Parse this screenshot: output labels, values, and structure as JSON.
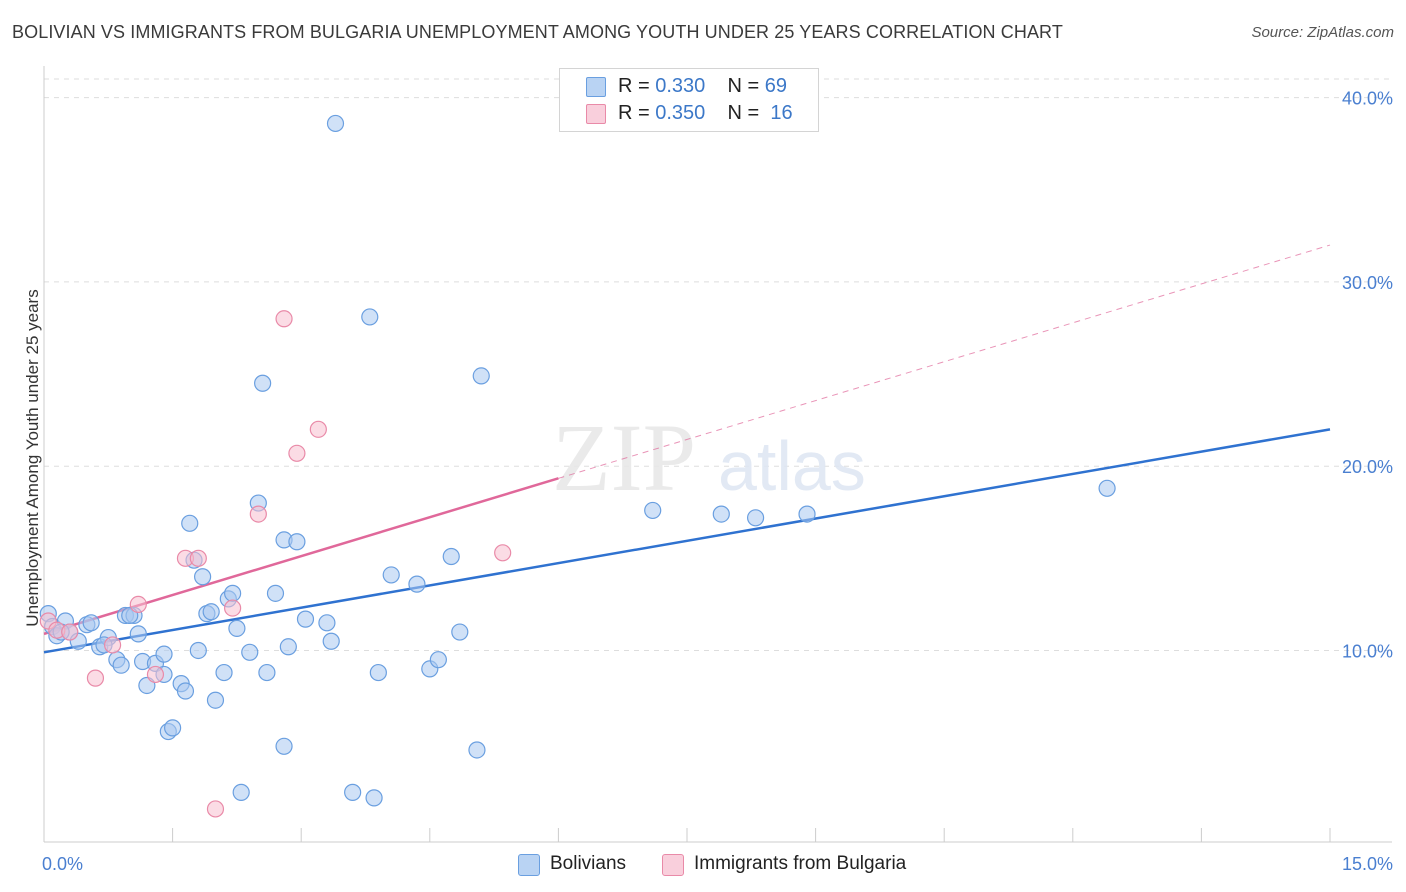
{
  "title": "BOLIVIAN VS IMMIGRANTS FROM BULGARIA UNEMPLOYMENT AMONG YOUTH UNDER 25 YEARS CORRELATION CHART",
  "source": "Source: ZipAtlas.com",
  "watermark": {
    "zip": "ZIP",
    "atlas": "atlas"
  },
  "legend": {
    "r_label": "R =",
    "n_label": "N =",
    "rows": [
      {
        "r": "0.330",
        "n": "69"
      },
      {
        "r": "0.350",
        "n": "16"
      }
    ]
  },
  "colors": {
    "bolivians_fill": "#a9c8f0",
    "bolivians_stroke": "#6a9fe0",
    "bolivians_line": "#2f72d0",
    "bulgaria_fill": "#f7bfd0",
    "bulgaria_stroke": "#e98aa8",
    "bulgaria_line": "#e0689a",
    "axis_label": "#4a7fd0",
    "grid": "#dddddd"
  },
  "chart_data": {
    "type": "scatter",
    "title": "BOLIVIAN VS IMMIGRANTS FROM BULGARIA UNEMPLOYMENT AMONG YOUTH UNDER 25 YEARS CORRELATION CHART",
    "xlabel": "",
    "ylabel": "Unemployment Among Youth under 25 years",
    "xlim": [
      0,
      15
    ],
    "ylim": [
      0.8,
      41.5
    ],
    "x_tick_labels": [
      "0.0%",
      "15.0%"
    ],
    "y_ticks": [
      10,
      20,
      30,
      40
    ],
    "y_tick_labels": [
      "10.0%",
      "20.0%",
      "30.0%",
      "40.0%"
    ],
    "series": [
      {
        "name": "Bolivians",
        "R": 0.33,
        "N": 69,
        "trend": {
          "x0": 0.0,
          "y0": 9.9,
          "x1": 15.0,
          "y1": 22.0,
          "style": "solid"
        },
        "points": [
          [
            0.05,
            12.0
          ],
          [
            0.1,
            11.3
          ],
          [
            0.15,
            10.8
          ],
          [
            0.25,
            11.6
          ],
          [
            0.3,
            11.0
          ],
          [
            0.4,
            10.5
          ],
          [
            0.5,
            11.4
          ],
          [
            0.55,
            11.5
          ],
          [
            0.65,
            10.2
          ],
          [
            0.75,
            10.7
          ],
          [
            0.85,
            9.5
          ],
          [
            0.9,
            9.2
          ],
          [
            0.95,
            11.9
          ],
          [
            1.05,
            11.9
          ],
          [
            1.1,
            10.9
          ],
          [
            1.15,
            9.4
          ],
          [
            1.2,
            8.1
          ],
          [
            1.3,
            9.3
          ],
          [
            1.4,
            8.7
          ],
          [
            1.4,
            9.8
          ],
          [
            1.45,
            5.6
          ],
          [
            1.5,
            5.8
          ],
          [
            1.6,
            8.2
          ],
          [
            1.65,
            7.8
          ],
          [
            1.7,
            16.9
          ],
          [
            1.75,
            14.9
          ],
          [
            1.8,
            10.0
          ],
          [
            1.85,
            14.0
          ],
          [
            1.9,
            12.0
          ],
          [
            1.95,
            12.1
          ],
          [
            2.0,
            7.3
          ],
          [
            2.1,
            8.8
          ],
          [
            2.15,
            12.8
          ],
          [
            2.2,
            13.1
          ],
          [
            2.25,
            11.2
          ],
          [
            2.3,
            2.3
          ],
          [
            2.4,
            9.9
          ],
          [
            2.5,
            18.0
          ],
          [
            2.55,
            24.5
          ],
          [
            2.6,
            8.8
          ],
          [
            2.7,
            13.1
          ],
          [
            2.8,
            16.0
          ],
          [
            2.85,
            10.2
          ],
          [
            2.8,
            4.8
          ],
          [
            2.95,
            15.9
          ],
          [
            3.05,
            11.7
          ],
          [
            3.3,
            11.5
          ],
          [
            3.35,
            10.5
          ],
          [
            3.4,
            38.6
          ],
          [
            3.6,
            2.3
          ],
          [
            3.8,
            28.1
          ],
          [
            3.85,
            2.0
          ],
          [
            3.9,
            8.8
          ],
          [
            4.05,
            14.1
          ],
          [
            4.35,
            13.6
          ],
          [
            4.5,
            9.0
          ],
          [
            4.6,
            9.5
          ],
          [
            4.75,
            15.1
          ],
          [
            4.85,
            11.0
          ],
          [
            5.05,
            4.6
          ],
          [
            5.1,
            24.9
          ],
          [
            7.1,
            17.6
          ],
          [
            7.9,
            17.4
          ],
          [
            8.3,
            17.2
          ],
          [
            8.9,
            17.4
          ],
          [
            12.4,
            18.8
          ],
          [
            1.0,
            11.9
          ],
          [
            0.7,
            10.3
          ],
          [
            0.2,
            11.0
          ]
        ]
      },
      {
        "name": "Immigrants from Bulgaria",
        "R": 0.35,
        "N": 16,
        "trend": {
          "x0": 0.0,
          "y0": 10.9,
          "x1": 15.0,
          "y1": 32.0,
          "solid_to_x": 6.0,
          "style": "solid-then-dashed"
        },
        "points": [
          [
            0.05,
            11.6
          ],
          [
            0.15,
            11.1
          ],
          [
            0.3,
            11.0
          ],
          [
            0.6,
            8.5
          ],
          [
            0.8,
            10.3
          ],
          [
            1.1,
            12.5
          ],
          [
            1.3,
            8.7
          ],
          [
            1.65,
            15.0
          ],
          [
            1.8,
            15.0
          ],
          [
            2.0,
            1.4
          ],
          [
            2.2,
            12.3
          ],
          [
            2.5,
            17.4
          ],
          [
            2.8,
            28.0
          ],
          [
            2.95,
            20.7
          ],
          [
            3.2,
            22.0
          ],
          [
            5.35,
            15.3
          ]
        ]
      }
    ]
  },
  "bottom_legend": [
    {
      "label": "Bolivians"
    },
    {
      "label": "Immigrants from Bulgaria"
    }
  ]
}
